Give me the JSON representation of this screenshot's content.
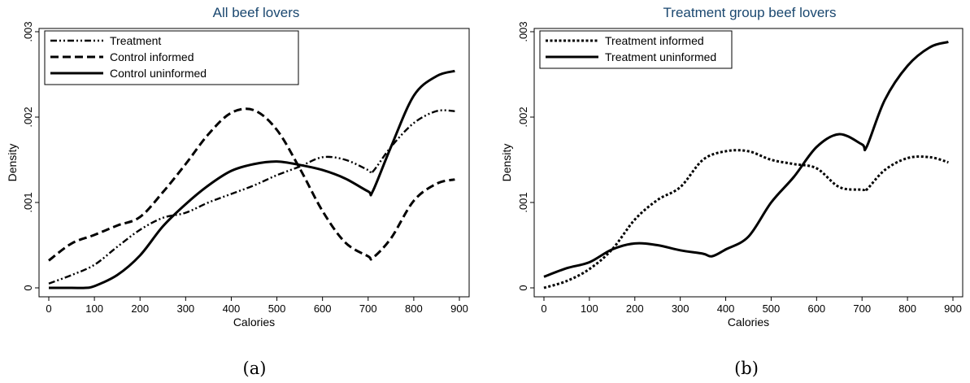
{
  "chart_data": [
    {
      "type": "line",
      "title": "All beef lovers",
      "xlabel": "Calories",
      "ylabel": "Density",
      "xlim": [
        0,
        900
      ],
      "ylim": [
        0,
        0.003
      ],
      "x_ticks": [
        0,
        100,
        200,
        300,
        400,
        500,
        600,
        700,
        800,
        900
      ],
      "x_tick_labels": [
        "0",
        "100",
        "200",
        "300",
        "400",
        "500",
        "600",
        "700",
        "800",
        "900"
      ],
      "y_ticks": [
        0,
        0.001,
        0.002,
        0.003
      ],
      "y_tick_labels": [
        "0",
        ".001",
        ".002",
        ".003"
      ],
      "caption": "(a)",
      "legend_position": "top-left",
      "series": [
        {
          "name": "Treatment",
          "style": "dash-dot-dot",
          "x": [
            0,
            50,
            100,
            150,
            200,
            250,
            300,
            350,
            400,
            450,
            500,
            550,
            600,
            650,
            700,
            710,
            750,
            800,
            850,
            890
          ],
          "y": [
            5e-05,
            0.00015,
            0.00027,
            0.00048,
            0.00068,
            0.00082,
            0.00088,
            0.001,
            0.0011,
            0.0012,
            0.00132,
            0.00142,
            0.00153,
            0.0015,
            0.00138,
            0.00136,
            0.00165,
            0.00193,
            0.00207,
            0.00207
          ]
        },
        {
          "name": "Control informed",
          "style": "dashed",
          "x": [
            0,
            50,
            100,
            150,
            200,
            250,
            300,
            350,
            400,
            450,
            500,
            550,
            600,
            650,
            700,
            710,
            750,
            800,
            850,
            890
          ],
          "y": [
            0.00032,
            0.00052,
            0.00062,
            0.00073,
            0.00083,
            0.00112,
            0.00145,
            0.0018,
            0.00205,
            0.00208,
            0.00185,
            0.0014,
            0.0009,
            0.00053,
            0.00037,
            0.00035,
            0.00058,
            0.00102,
            0.00122,
            0.00127
          ]
        },
        {
          "name": "Control uninformed",
          "style": "solid",
          "x": [
            0,
            50,
            80,
            100,
            150,
            200,
            250,
            300,
            350,
            400,
            450,
            500,
            550,
            600,
            650,
            700,
            710,
            750,
            800,
            850,
            890
          ],
          "y": [
            0,
            0,
            0,
            2e-05,
            0.00015,
            0.00038,
            0.00072,
            0.00098,
            0.0012,
            0.00137,
            0.00145,
            0.00148,
            0.00144,
            0.00138,
            0.00128,
            0.00113,
            0.00113,
            0.00165,
            0.00225,
            0.00248,
            0.00254
          ]
        }
      ]
    },
    {
      "type": "line",
      "title": "Treatment group beef lovers",
      "xlabel": "Calories",
      "ylabel": "Density",
      "xlim": [
        0,
        900
      ],
      "ylim": [
        0,
        0.003
      ],
      "x_ticks": [
        0,
        100,
        200,
        300,
        400,
        500,
        600,
        700,
        800,
        900
      ],
      "x_tick_labels": [
        "0",
        "100",
        "200",
        "300",
        "400",
        "500",
        "600",
        "700",
        "800",
        "900"
      ],
      "y_ticks": [
        0,
        0.001,
        0.002,
        0.003
      ],
      "y_tick_labels": [
        "0",
        ".001",
        ".002",
        ".003"
      ],
      "caption": "(b)",
      "legend_position": "top-left",
      "series": [
        {
          "name": "Treatment informed",
          "style": "dotted",
          "x": [
            0,
            50,
            100,
            150,
            200,
            250,
            300,
            350,
            400,
            450,
            500,
            550,
            600,
            650,
            700,
            710,
            750,
            800,
            850,
            890
          ],
          "y": [
            0,
            8e-05,
            0.00022,
            0.00045,
            0.0008,
            0.00103,
            0.00118,
            0.0015,
            0.0016,
            0.0016,
            0.0015,
            0.00145,
            0.0014,
            0.00118,
            0.00115,
            0.00115,
            0.00138,
            0.00152,
            0.00153,
            0.00147
          ]
        },
        {
          "name": "Treatment uninformed",
          "style": "solid",
          "x": [
            0,
            50,
            100,
            150,
            200,
            250,
            300,
            350,
            370,
            400,
            450,
            500,
            550,
            600,
            650,
            700,
            710,
            750,
            800,
            850,
            890
          ],
          "y": [
            0.00013,
            0.00023,
            0.0003,
            0.00045,
            0.00052,
            0.0005,
            0.00044,
            0.0004,
            0.00037,
            0.00045,
            0.0006,
            0.001,
            0.0013,
            0.00165,
            0.0018,
            0.00168,
            0.00165,
            0.0022,
            0.0026,
            0.00282,
            0.00288
          ]
        }
      ]
    }
  ]
}
